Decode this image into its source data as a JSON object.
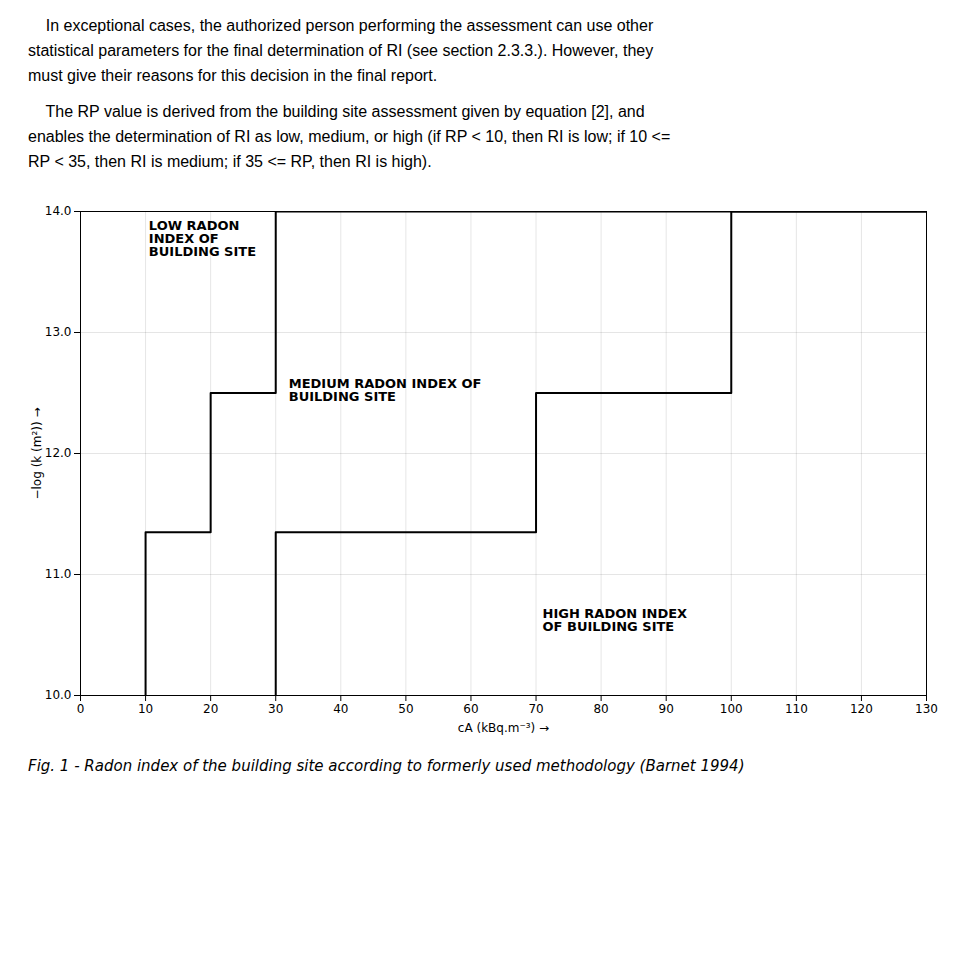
{
  "chart_data": {
    "type": "line",
    "subtitle": [
      "    In exceptional cases, the authorized person performing the assessment can use other\nstatistical parameters for the final determination of RI (see section 2.3.3.). However, they\nmust give their reasons for this decision in the final report.",
      "    The RP value is derived from the building site assessment given by equation [2], and\nenables the determination of RI as low, medium, or high (if RP < 10, then RI is low; if 10 <=\nRP < 35, then RI is medium; if 35 <= RP, then RI is high)."
    ],
    "caption": "Fig. 1 - Radon index of the building site according to formerly used methodology (Barnet 1994)",
    "xlabel": "cA (kBq.m⁻³)",
    "ylabel": "−log (k (m²))",
    "series": [
      {
        "color": "#000000",
        "x": [
          10,
          10,
          20,
          20,
          30,
          30,
          130
        ],
        "values": [
          10,
          11.35,
          11.35,
          12.5,
          12.5,
          14,
          14
        ]
      },
      {
        "color": "#000000",
        "x": [
          30,
          30,
          70,
          70,
          100,
          100,
          130
        ],
        "values": [
          10,
          11.35,
          11.35,
          12.5,
          12.5,
          14,
          14
        ]
      }
    ],
    "annotations": [
      {
        "text": "LOW RADON\nINDEX OF\nBUILDING SITE",
        "x": 10.5,
        "y": 13.92
      },
      {
        "text": "MEDIUM RADON INDEX OF\nBUILDING SITE",
        "x": 32,
        "y": 12.62
      },
      {
        "text": "HIGH RADON INDEX\nOF BUILDING SITE",
        "x": 71,
        "y": 10.72
      }
    ],
    "xlim": [
      0,
      130
    ],
    "ylim": [
      10,
      14
    ],
    "xticks": [
      0,
      10,
      20,
      30,
      40,
      50,
      60,
      70,
      80,
      90,
      100,
      110,
      120,
      130
    ],
    "yticks": [
      10,
      11,
      12,
      13,
      14
    ],
    "grid": true
  }
}
